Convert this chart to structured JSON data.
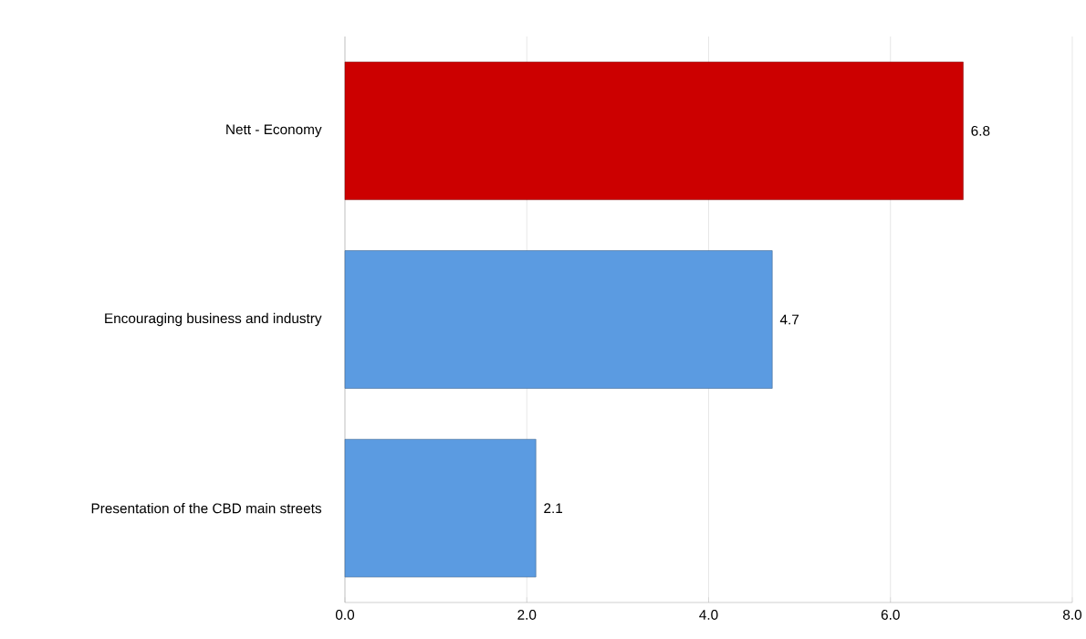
{
  "chart_data": {
    "type": "bar",
    "orientation": "horizontal",
    "categories": [
      "Nett - Economy",
      "Encouraging business and industry",
      "Presentation of the CBD main streets"
    ],
    "values": [
      6.8,
      4.7,
      2.1
    ],
    "colors": [
      "#cc0000",
      "#5b9be1",
      "#5b9be1"
    ],
    "xlim": [
      0,
      8
    ],
    "xticks": [
      {
        "value": 0,
        "label": "0.0"
      },
      {
        "value": 2,
        "label": "2.0"
      },
      {
        "value": 4,
        "label": "4.0"
      },
      {
        "value": 6,
        "label": "6.0"
      },
      {
        "value": 8,
        "label": "8.0"
      }
    ],
    "grid": "x",
    "data_labels": true
  }
}
